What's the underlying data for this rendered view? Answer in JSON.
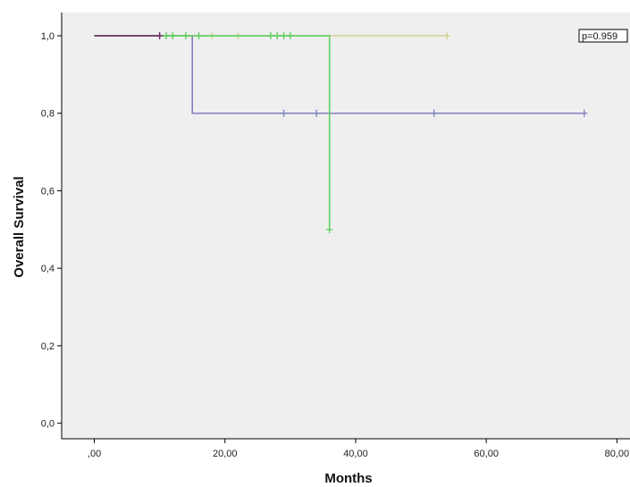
{
  "chart_data": {
    "type": "line",
    "title": "",
    "xlabel": "Months",
    "ylabel": "Overall Survival",
    "xlim": [
      -5,
      82
    ],
    "ylim": [
      -0.04,
      1.06
    ],
    "x_ticks": [
      0,
      20,
      40,
      60,
      80
    ],
    "x_tick_labels": [
      ",00",
      "20,00",
      "40,00",
      "60,00",
      "80,00"
    ],
    "y_ticks": [
      0,
      0.2,
      0.4,
      0.6,
      0.8,
      1.0
    ],
    "y_tick_labels": [
      "0,0",
      "0,2",
      "0,4",
      "0,6",
      "0,8",
      "1,0"
    ],
    "grid": false,
    "background": "#efefef",
    "annotation": "p=0.959",
    "series": [
      {
        "color": "#7f7fbf",
        "steps": [
          [
            0,
            1.0
          ],
          [
            15,
            1.0
          ],
          [
            15,
            0.8
          ],
          [
            75,
            0.8
          ]
        ],
        "censored": [
          [
            29,
            0.8
          ],
          [
            34,
            0.8
          ],
          [
            52,
            0.8
          ],
          [
            75,
            0.8
          ]
        ]
      },
      {
        "color": "#d4d49a",
        "steps": [
          [
            0,
            1.0
          ],
          [
            54,
            1.0
          ]
        ],
        "censored": [
          [
            18,
            1.0
          ],
          [
            22,
            1.0
          ],
          [
            54,
            1.0
          ]
        ]
      },
      {
        "color": "#5fcf5f",
        "steps": [
          [
            0,
            1.0
          ],
          [
            36,
            1.0
          ],
          [
            36,
            0.5
          ]
        ],
        "censored": [
          [
            11,
            1.0
          ],
          [
            12,
            1.0
          ],
          [
            14,
            1.0
          ],
          [
            16,
            1.0
          ],
          [
            27,
            1.0
          ],
          [
            28,
            1.0
          ],
          [
            29,
            1.0
          ],
          [
            30,
            1.0
          ],
          [
            36,
            0.5
          ]
        ]
      },
      {
        "color": "#6e2a6e",
        "steps": [
          [
            0,
            1.0
          ],
          [
            10,
            1.0
          ]
        ],
        "censored": [
          [
            10,
            1.0
          ]
        ]
      }
    ]
  }
}
